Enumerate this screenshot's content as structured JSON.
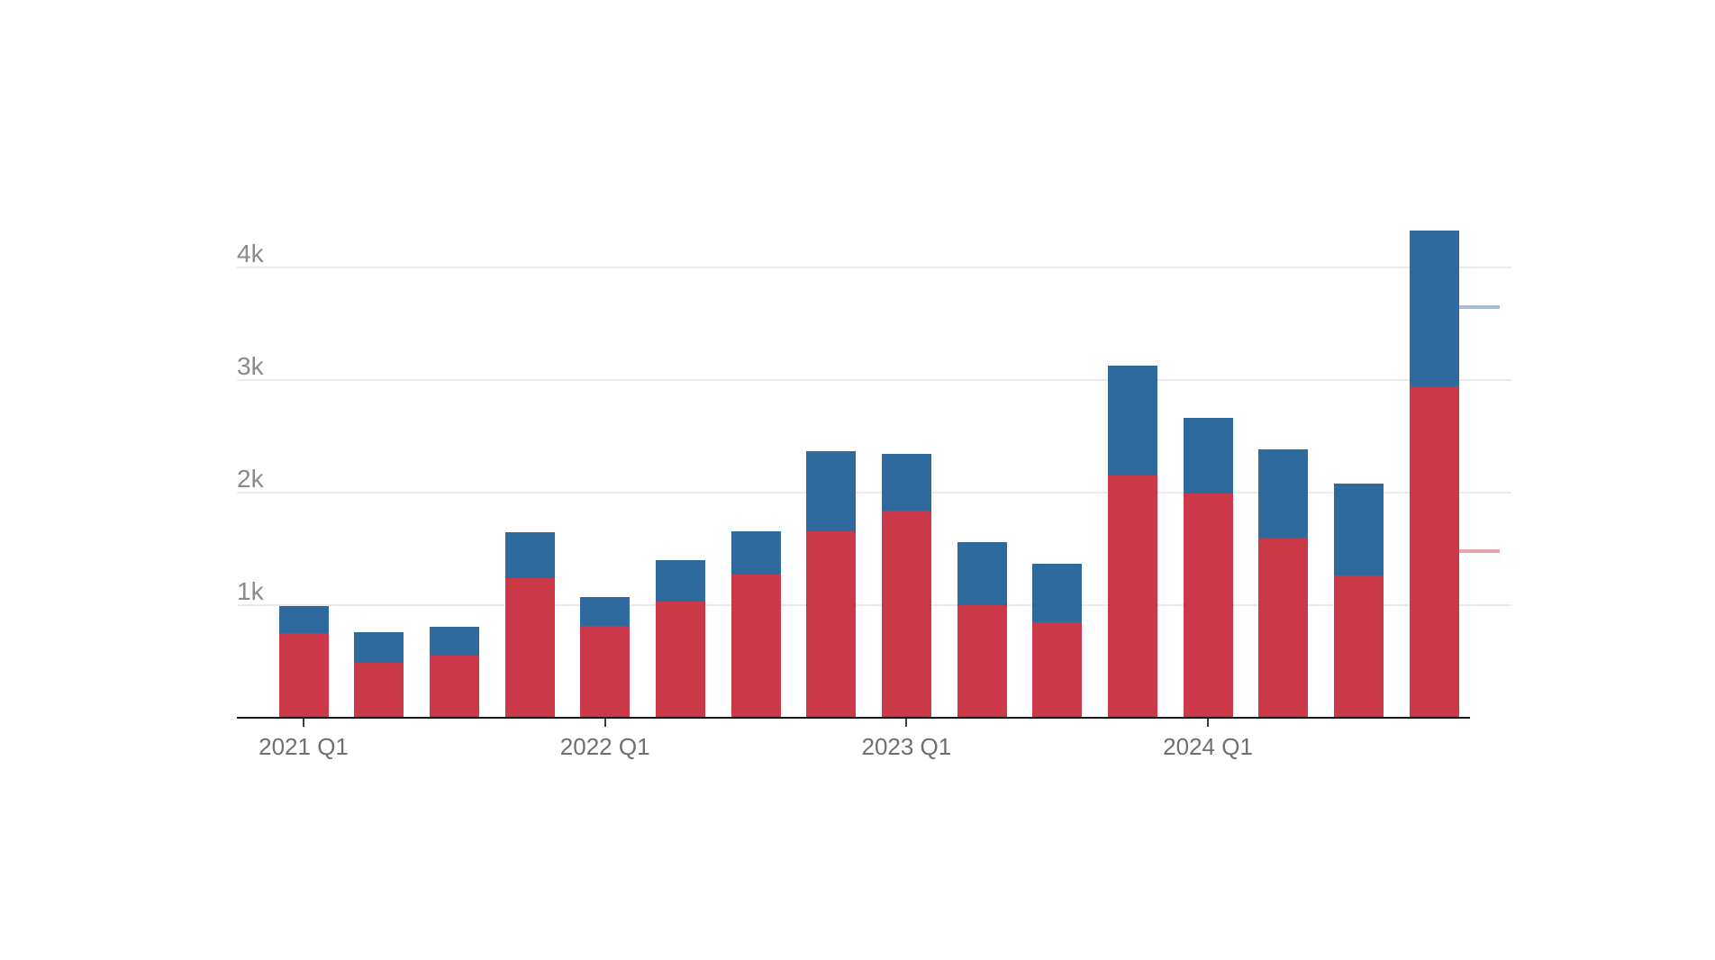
{
  "chart_data": {
    "type": "bar",
    "stacked": true,
    "title": "",
    "xlabel": "",
    "ylabel": "",
    "bar_count": 16,
    "series": [
      {
        "name": "red (bottom segment)",
        "color": "#cb3847",
        "values": [
          750,
          490,
          550,
          1240,
          815,
          1035,
          1275,
          1655,
          1840,
          1000,
          850,
          2155,
          1995,
          1600,
          1265,
          2945
        ]
      },
      {
        "name": "blue (top segment)",
        "color": "#2f6a9f",
        "values": [
          240,
          270,
          260,
          410,
          260,
          365,
          380,
          715,
          505,
          560,
          515,
          975,
          670,
          785,
          815,
          1380
        ]
      }
    ],
    "stack_totals": [
      990,
      760,
      810,
      1650,
      1075,
      1400,
      1655,
      2370,
      2345,
      1560,
      1365,
      3130,
      2665,
      2385,
      2080,
      4325
    ],
    "x_ticks": [
      {
        "label": "2021 Q1",
        "bar_index": 0
      },
      {
        "label": "2022 Q1",
        "bar_index": 4
      },
      {
        "label": "2023 Q1",
        "bar_index": 8
      },
      {
        "label": "2024 Q1",
        "bar_index": 12
      }
    ],
    "y_ticks": [
      {
        "label": "1k",
        "value": 1000
      },
      {
        "label": "2k",
        "value": 2000
      },
      {
        "label": "3k",
        "value": 3000
      },
      {
        "label": "4k",
        "value": 4000
      }
    ],
    "ylim": [
      0,
      4500
    ],
    "grid": true,
    "legend_position": "none",
    "right_markers": [
      {
        "name": "light-blue-marker",
        "color": "#a8bed6",
        "value": 3650
      },
      {
        "name": "light-pink-marker",
        "color": "#e8a3ab",
        "value": 1480
      }
    ],
    "colors": {
      "background": "#ffffff",
      "gridline": "#ebebeb",
      "axis_line": "#1a1a1a",
      "tick": "#3d3d3d",
      "x_label": "#6f6f6f",
      "y_label": "#8a8a8a"
    }
  }
}
